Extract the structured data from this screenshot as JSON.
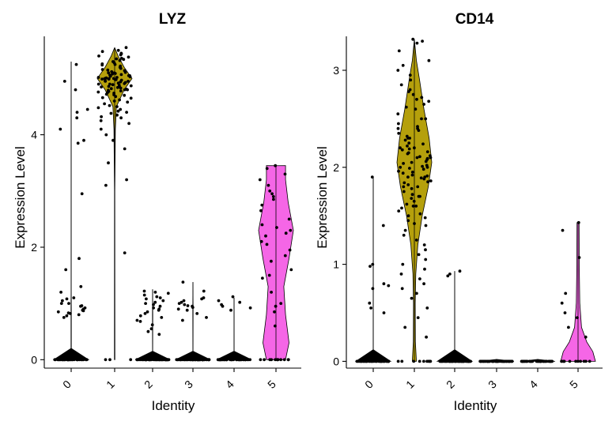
{
  "chart_data": [
    {
      "type": "violin",
      "title": "LYZ",
      "xlabel": "Identity",
      "ylabel": "Expression Level",
      "categories": [
        "0",
        "1",
        "2",
        "3",
        "4",
        "5"
      ],
      "yticks": [
        "0",
        "2",
        "4"
      ],
      "ylim": [
        -0.15,
        5.75
      ],
      "grid": false,
      "colors": [
        "#000000",
        "#b5a00c",
        "#000000",
        "#000000",
        "#000000",
        "#f566e6"
      ],
      "violins": [
        {
          "category": "0",
          "max": 5.3,
          "profile": [
            [
              0,
              1
            ],
            [
              0.2,
              0.01
            ],
            [
              0.9,
              0.008
            ],
            [
              1.2,
              0.004
            ],
            [
              5.3,
              0
            ]
          ]
        },
        {
          "category": "1",
          "max": 5.55,
          "profile": [
            [
              0,
              0.012
            ],
            [
              3.0,
              0.01
            ],
            [
              4.1,
              0.04
            ],
            [
              4.5,
              0.1
            ],
            [
              4.8,
              0.55
            ],
            [
              5.0,
              1
            ],
            [
              5.2,
              0.55
            ],
            [
              5.4,
              0.2
            ],
            [
              5.55,
              0
            ]
          ]
        },
        {
          "category": "2",
          "max": 1.25,
          "profile": [
            [
              0,
              1
            ],
            [
              0.15,
              0.005
            ],
            [
              0.8,
              0.008
            ],
            [
              1.25,
              0
            ]
          ]
        },
        {
          "category": "3",
          "max": 1.38,
          "profile": [
            [
              0,
              1
            ],
            [
              0.15,
              0.005
            ],
            [
              0.9,
              0.007
            ],
            [
              1.38,
              0
            ]
          ]
        },
        {
          "category": "4",
          "max": 1.1,
          "profile": [
            [
              0,
              1
            ],
            [
              0.15,
              0.004
            ],
            [
              1.1,
              0
            ]
          ]
        },
        {
          "category": "5",
          "max": 3.45,
          "profile": [
            [
              0,
              0.55
            ],
            [
              0.3,
              0.75
            ],
            [
              0.8,
              0.55
            ],
            [
              1.3,
              0.45
            ],
            [
              1.8,
              0.75
            ],
            [
              2.3,
              1
            ],
            [
              2.8,
              0.7
            ],
            [
              3.2,
              0.55
            ],
            [
              3.45,
              0.55
            ]
          ]
        }
      ],
      "points": [
        {
          "category": "0",
          "nonzero": [
            5.25,
            4.95,
            4.8,
            4.45,
            4.4,
            4.3,
            4.1,
            3.9,
            3.85,
            2.95,
            1.8,
            1.6,
            1.3,
            1.2,
            1.1,
            1.05,
            1.0,
            0.95,
            0.9,
            0.88,
            0.85,
            0.82,
            0.8,
            0.78,
            0.75,
            1.08,
            0.92,
            0.87,
            0.83,
            1.0,
            0.96
          ],
          "zeros": 40
        },
        {
          "category": "1",
          "nonzero": [
            5.55,
            5.5,
            5.45,
            5.4,
            5.35,
            5.3,
            5.25,
            5.2,
            5.15,
            5.1,
            5.05,
            5.0,
            4.98,
            4.95,
            4.92,
            4.9,
            4.88,
            4.85,
            4.82,
            4.8,
            4.78,
            4.75,
            4.7,
            4.65,
            4.6,
            4.55,
            4.5,
            4.45,
            4.4,
            4.35,
            4.3,
            4.25,
            4.2,
            4.1,
            4.0,
            3.9,
            3.75,
            3.5,
            3.2,
            3.1,
            1.9,
            5.12,
            5.08,
            5.02,
            4.99,
            4.97,
            4.93,
            4.91,
            4.87,
            4.84,
            4.81,
            4.79,
            4.76,
            4.72,
            4.68,
            4.62,
            5.18,
            5.22,
            5.28,
            5.32,
            5.38,
            5.42,
            5.48,
            5.02,
            4.96,
            4.94,
            4.89,
            4.86,
            4.83,
            5.06,
            5.04,
            5.01,
            5.0,
            4.99,
            4.98,
            5.03,
            5.07,
            5.09,
            5.11,
            5.14,
            4.77,
            4.74,
            4.71,
            4.66,
            4.58,
            4.52,
            4.48,
            4.42,
            4.38,
            4.32,
            5.16,
            5.24,
            5.26,
            5.34,
            5.36,
            5.44,
            4.9,
            4.95,
            5.0,
            5.05,
            5.1,
            4.85,
            4.8
          ],
          "zeros": 3
        },
        {
          "category": "2",
          "nonzero": [
            1.22,
            1.2,
            1.18,
            1.15,
            1.1,
            1.08,
            1.05,
            1.0,
            0.98,
            0.95,
            0.92,
            0.9,
            0.88,
            0.82,
            0.78,
            0.75,
            0.7,
            0.68,
            0.62,
            0.55,
            0.5,
            0.45,
            1.12,
            1.02,
            0.85
          ],
          "zeros": 55
        },
        {
          "category": "3",
          "nonzero": [
            1.38,
            1.22,
            1.1,
            1.08,
            1.05,
            1.02,
            1.0,
            0.98,
            0.96,
            0.95,
            0.93,
            0.9,
            0.88,
            0.82,
            0.75,
            0.7
          ],
          "zeros": 60
        },
        {
          "category": "4",
          "nonzero": [
            1.12,
            1.05,
            1.02,
            0.98,
            0.95,
            0.92,
            0.88
          ],
          "zeros": 45
        },
        {
          "category": "5",
          "nonzero": [
            3.45,
            3.4,
            3.3,
            3.2,
            3.1,
            3.0,
            2.95,
            2.9,
            2.85,
            2.75,
            2.65,
            2.5,
            2.4,
            2.35,
            2.3,
            2.25,
            2.2,
            2.1,
            2.05,
            1.95,
            1.85,
            1.75,
            1.6,
            1.5,
            1.45,
            1.2,
            1.0,
            0.95,
            0.85,
            0.6
          ],
          "zeros": 12
        }
      ]
    },
    {
      "type": "violin",
      "title": "CD14",
      "xlabel": "Identity",
      "ylabel": "Expression Level",
      "categories": [
        "0",
        "1",
        "2",
        "3",
        "4",
        "5"
      ],
      "yticks": [
        "0",
        "1",
        "2",
        "3"
      ],
      "ylim": [
        -0.07,
        3.35
      ],
      "grid": false,
      "colors": [
        "#000000",
        "#b5a00c",
        "#000000",
        "#000000",
        "#000000",
        "#f566e6"
      ],
      "violins": [
        {
          "category": "0",
          "max": 1.9,
          "profile": [
            [
              0,
              1
            ],
            [
              0.12,
              0.005
            ],
            [
              1.9,
              0
            ]
          ]
        },
        {
          "category": "1",
          "max": 3.32,
          "profile": [
            [
              0,
              0.12
            ],
            [
              0.2,
              0.06
            ],
            [
              0.6,
              0.05
            ],
            [
              0.9,
              0.08
            ],
            [
              1.2,
              0.2
            ],
            [
              1.5,
              0.45
            ],
            [
              1.8,
              0.8
            ],
            [
              2.05,
              1
            ],
            [
              2.3,
              0.85
            ],
            [
              2.6,
              0.55
            ],
            [
              2.9,
              0.3
            ],
            [
              3.1,
              0.12
            ],
            [
              3.32,
              0
            ]
          ]
        },
        {
          "category": "2",
          "max": 0.93,
          "profile": [
            [
              0,
              1
            ],
            [
              0.12,
              0.004
            ],
            [
              0.93,
              0
            ]
          ]
        },
        {
          "category": "3",
          "max": 0.02,
          "profile": [
            [
              0,
              1
            ],
            [
              0.02,
              0
            ]
          ]
        },
        {
          "category": "4",
          "max": 0.02,
          "profile": [
            [
              0,
              1
            ],
            [
              0.02,
              0
            ]
          ]
        },
        {
          "category": "5",
          "max": 1.43,
          "profile": [
            [
              0,
              1
            ],
            [
              0.1,
              0.85
            ],
            [
              0.2,
              0.5
            ],
            [
              0.35,
              0.2
            ],
            [
              0.6,
              0.1
            ],
            [
              1.0,
              0.07
            ],
            [
              1.43,
              0.06
            ]
          ]
        }
      ],
      "points": [
        {
          "category": "0",
          "nonzero": [
            1.9,
            1.4,
            1.0,
            0.98,
            0.8,
            0.78,
            0.75,
            0.6,
            0.55,
            0.5
          ],
          "zeros": 45
        },
        {
          "category": "1",
          "nonzero": [
            3.32,
            3.3,
            3.28,
            3.2,
            3.1,
            3.05,
            3.0,
            2.95,
            2.9,
            2.85,
            2.8,
            2.75,
            2.7,
            2.65,
            2.6,
            2.55,
            2.5,
            2.45,
            2.4,
            2.35,
            2.3,
            2.25,
            2.2,
            2.18,
            2.15,
            2.12,
            2.1,
            2.08,
            2.05,
            2.02,
            2.0,
            1.98,
            1.95,
            1.92,
            1.9,
            1.88,
            1.85,
            1.82,
            1.8,
            1.75,
            1.7,
            1.65,
            1.6,
            1.55,
            1.5,
            1.45,
            1.4,
            1.35,
            1.3,
            1.25,
            1.2,
            1.15,
            1.1,
            1.05,
            1.0,
            0.95,
            0.9,
            0.85,
            0.8,
            0.75,
            0.7,
            0.65,
            0.55,
            0.45,
            0.35,
            0.25,
            2.22,
            2.16,
            2.11,
            2.06,
            2.01,
            1.96,
            1.91,
            1.86,
            2.24,
            2.14,
            2.04,
            1.94,
            1.84,
            2.19,
            2.09,
            1.99,
            1.89,
            2.28,
            2.32,
            2.38,
            2.42,
            1.78,
            1.72,
            1.68,
            1.62,
            2.62,
            2.68,
            2.72,
            2.78,
            1.58,
            1.52,
            1.48,
            1.42,
            2.5,
            2.4,
            2.3,
            2.2,
            2.1,
            2.0,
            1.9,
            1.8,
            1.7,
            1.6
          ],
          "zeros": 10
        },
        {
          "category": "2",
          "nonzero": [
            0.93,
            0.9,
            0.88
          ],
          "zeros": 60
        },
        {
          "category": "3",
          "nonzero": [],
          "zeros": 60
        },
        {
          "category": "4",
          "nonzero": [],
          "zeros": 50
        },
        {
          "category": "5",
          "nonzero": [
            1.43,
            1.35,
            1.07,
            0.7,
            0.6,
            0.5,
            0.45,
            0.35,
            0.25
          ],
          "zeros": 12
        }
      ]
    }
  ]
}
